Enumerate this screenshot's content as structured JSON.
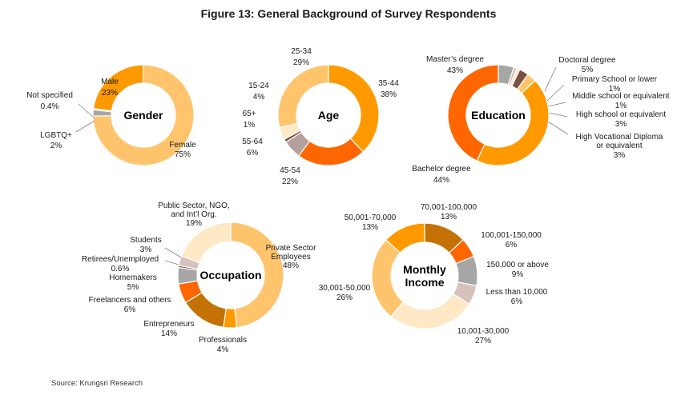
{
  "figure": {
    "title": "Figure 13: General Background of Survey Respondents",
    "source": "Source: Krungsri Research"
  },
  "colors": {
    "female": "#FFC46C",
    "male": "#FF9900",
    "gray": "#A6A6A6",
    "orange_dark": "#FF6600",
    "orange_mid": "#FF9900",
    "peach": "#FFC46C",
    "cream": "#FFE8C5",
    "brown": "#C47205",
    "dark_brown": "#7B4F44",
    "pink_gray": "#D8C0BC",
    "leader": "#808080"
  },
  "chart_data": [
    {
      "type": "pie",
      "center_label": "Gender",
      "slices": [
        {
          "label": "Female",
          "value": 75,
          "value_label": "75%",
          "color": "#FFC46C"
        },
        {
          "label": "LGBTQ+",
          "value": 2,
          "value_label": "2%",
          "color": "#A6A6A6"
        },
        {
          "label": "Not specified",
          "value": 0.4,
          "value_label": "0.4%",
          "color": "#FFE8C5"
        },
        {
          "label": "Male",
          "value": 23,
          "value_label": "23%",
          "color": "#FF9900"
        }
      ]
    },
    {
      "type": "pie",
      "center_label": "Age",
      "slices": [
        {
          "label": "35-44",
          "value": 38,
          "value_label": "38%",
          "color": "#FF9900"
        },
        {
          "label": "45-54",
          "value": 22,
          "value_label": "22%",
          "color": "#FF6600"
        },
        {
          "label": "55-64",
          "value": 6,
          "value_label": "6%",
          "color": "#B5A09C"
        },
        {
          "label": "65+",
          "value": 1,
          "value_label": "1%",
          "color": "#7B4F44"
        },
        {
          "label": "15-24",
          "value": 4,
          "value_label": "4%",
          "color": "#FFE8C5"
        },
        {
          "label": "25-34",
          "value": 29,
          "value_label": "29%",
          "color": "#FFC46C"
        }
      ]
    },
    {
      "type": "pie",
      "center_label": "Education",
      "slices": [
        {
          "label": "Doctoral degree",
          "value": 5,
          "value_label": "5%",
          "color": "#A6A6A6"
        },
        {
          "label": "Primary School or lower",
          "value": 1,
          "value_label": "1%",
          "color": "#D8C0BC"
        },
        {
          "label": "Middle school or equivalent",
          "value": 1,
          "value_label": "1%",
          "color": "#FFE8C5"
        },
        {
          "label": "High school or equivalent",
          "value": 3,
          "value_label": "3%",
          "color": "#7B4F44"
        },
        {
          "label": "High Vocational Diploma or equivalent",
          "value": 3,
          "value_label": "3%",
          "color": "#FFC46C"
        },
        {
          "label": "Bachelor degree",
          "value": 44,
          "value_label": "44%",
          "color": "#FF9900"
        },
        {
          "label": "Master's degree",
          "value": 43,
          "value_label": "43%",
          "color": "#FF6600"
        }
      ]
    },
    {
      "type": "pie",
      "center_label": "Occupation",
      "slices": [
        {
          "label": "Private Sector Employees",
          "value": 48,
          "value_label": "48%",
          "color": "#FFC46C"
        },
        {
          "label": "Professionals",
          "value": 4,
          "value_label": "4%",
          "color": "#FF9900"
        },
        {
          "label": "Entrepreneurs",
          "value": 14,
          "value_label": "14%",
          "color": "#C47205"
        },
        {
          "label": "Freelancers and others",
          "value": 6,
          "value_label": "6%",
          "color": "#FF6600"
        },
        {
          "label": "Homemakers",
          "value": 5,
          "value_label": "5%",
          "color": "#A6A6A6"
        },
        {
          "label": "Retirees/Unemployed",
          "value": 0.6,
          "value_label": "0.6%",
          "color": "#7B4F44"
        },
        {
          "label": "Students",
          "value": 3,
          "value_label": "3%",
          "color": "#D8C0BC"
        },
        {
          "label": "Public Sector, NGO, and Int'l Org.",
          "value": 19,
          "value_label": "19%",
          "color": "#FFE8C5"
        }
      ]
    },
    {
      "type": "pie",
      "center_label": "Monthly Income",
      "slices": [
        {
          "label": "70,001-100,000",
          "value": 13,
          "value_label": "13%",
          "color": "#C47205"
        },
        {
          "label": "100,001-150,000",
          "value": 6,
          "value_label": "6%",
          "color": "#FF6600"
        },
        {
          "label": "150,000 or above",
          "value": 9,
          "value_label": "9%",
          "color": "#A6A6A6"
        },
        {
          "label": "Less than 10,000",
          "value": 6,
          "value_label": "6%",
          "color": "#D8C0BC"
        },
        {
          "label": "10,001-30,000",
          "value": 27,
          "value_label": "27%",
          "color": "#FFE8C5"
        },
        {
          "label": "30,001-50,000",
          "value": 26,
          "value_label": "26%",
          "color": "#FFC46C"
        },
        {
          "label": "50,001-70,000",
          "value": 13,
          "value_label": "13%",
          "color": "#FF9900"
        }
      ]
    }
  ]
}
